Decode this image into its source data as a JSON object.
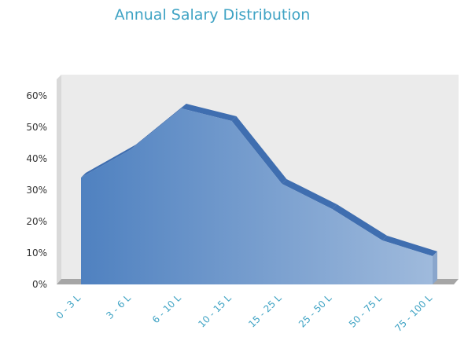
{
  "chart_data": {
    "type": "area",
    "title": "Annual Salary Distribution",
    "categories": [
      "0 - 3 L",
      "3 - 6 L",
      "6 - 10 L",
      "10 - 15 L",
      "15 - 25 L",
      "25 - 50 L",
      "50 - 75 L",
      "75 - 100 L"
    ],
    "values": [
      34,
      43,
      56,
      52,
      32,
      24,
      14,
      9
    ],
    "yticks": [
      "0%",
      "10%",
      "20%",
      "30%",
      "40%",
      "50%",
      "60%"
    ],
    "ylim": [
      0,
      60
    ],
    "grid": false,
    "legend": "none"
  },
  "colors": {
    "title": "#3fa3c4",
    "area_left": "#4f81c0",
    "area_right": "#9fbadc",
    "area_top": "#3f6eb0",
    "plot_bg": "#ebebeb",
    "floor": "#a6a6a6"
  }
}
